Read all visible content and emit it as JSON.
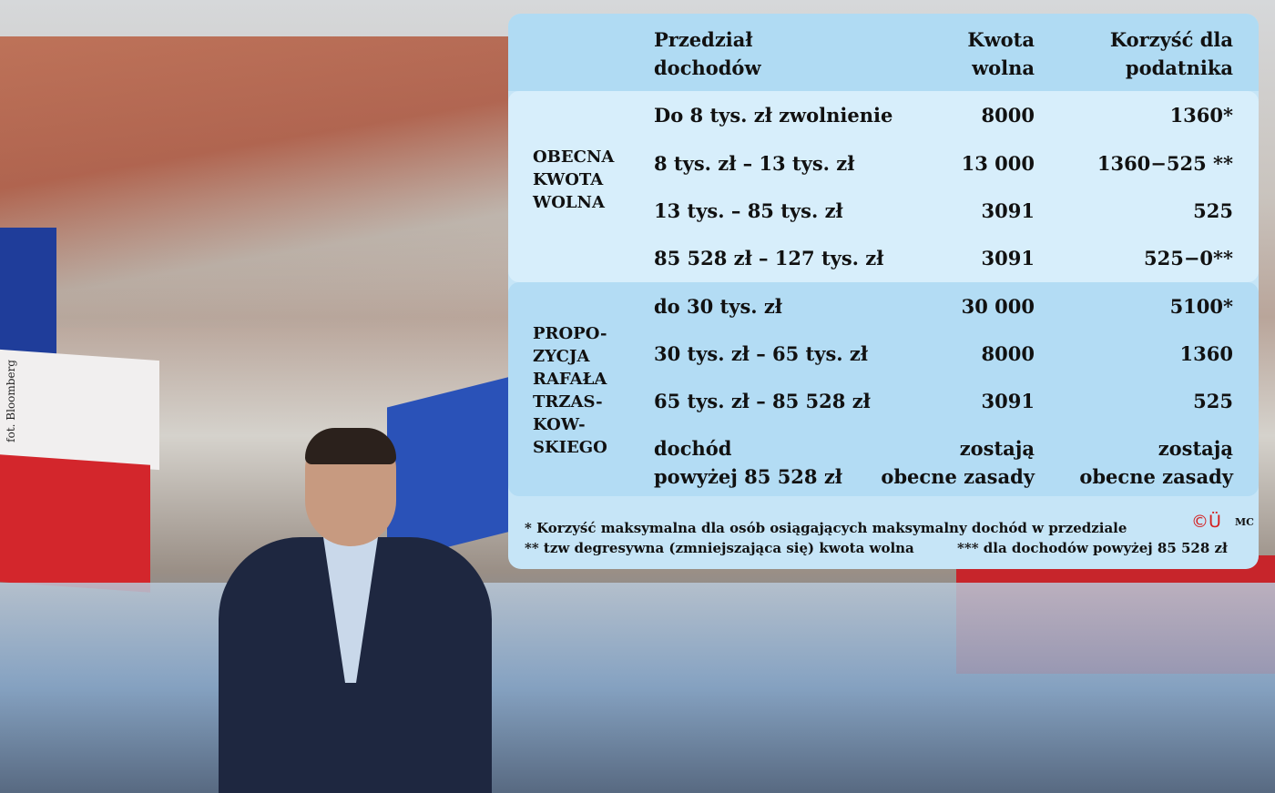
{
  "photo_credit": "fot. Bloomberg",
  "table": {
    "headers": [
      "Przedział dochodów",
      "Kwota wolna",
      "Korzyść dla podatnika"
    ],
    "header_lines": {
      "col1": [
        "Przedział",
        "dochodów"
      ],
      "col2": [
        "Kwota",
        "wolna"
      ],
      "col3": [
        "Korzyść dla",
        "podatnika"
      ]
    },
    "groups": [
      {
        "label": "OBECNA KWOTA WOLNA",
        "label_lines": [
          "OBECNA",
          "KWOTA",
          "WOLNA"
        ],
        "rows": [
          {
            "range": "Do 8 tys. zł zwolnienie",
            "free": "8000",
            "benefit": "1360*"
          },
          {
            "range": "8 tys. zł – 13 tys. zł",
            "free": "13 000",
            "benefit": "1360−525 **"
          },
          {
            "range": "13 tys. – 85 tys. zł",
            "free": "3091",
            "benefit": "525"
          },
          {
            "range": "85 528 zł – 127 tys. zł",
            "free": "3091",
            "benefit": "525−0**"
          }
        ]
      },
      {
        "label": "PROPOZYCJA RAFAŁA TRZASKOWSKIEGO",
        "label_lines": [
          "PROPO-",
          "ZYCJA",
          "RAFAŁA",
          "TRZAS-",
          "KOW-",
          "SKIEGO"
        ],
        "rows": [
          {
            "range": "do 30 tys. zł",
            "free": "30 000",
            "benefit": "5100*"
          },
          {
            "range": "30 tys. zł – 65 tys. zł",
            "free": "8000",
            "benefit": "1360"
          },
          {
            "range": "65 tys. zł – 85 528 zł",
            "free": "3091",
            "benefit": "525"
          },
          {
            "range": "dochód",
            "range2": "powyżej 85 528 zł",
            "free": "zostają",
            "free2": "obecne zasady",
            "benefit": "zostają",
            "benefit2": "obecne zasady"
          }
        ]
      }
    ],
    "footnotes": [
      "* Korzyść maksymalna dla osób osiągających maksymalny dochód w przedziale",
      "** tzw degresywna (zmniejszająca się)  kwota wolna",
      "*** dla dochodów powyżej 85 528 zł"
    ],
    "logo": "©Ü",
    "author": "MC"
  },
  "colors": {
    "header": "#b0dbf3",
    "group1": "#d7eefb",
    "group2": "#b3dcf4"
  }
}
